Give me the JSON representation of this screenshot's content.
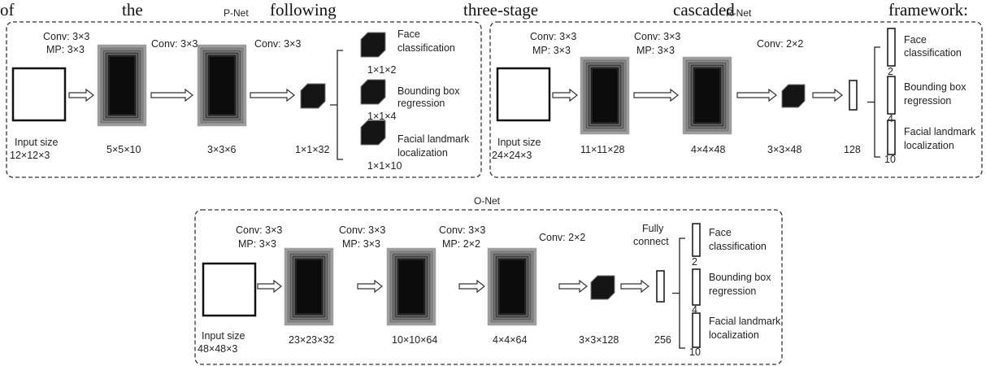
{
  "intro": [
    "of",
    "the",
    "following",
    "three-stage",
    "cascaded",
    "framework:"
  ],
  "networks": [
    {
      "title": "P-Net",
      "input": [
        "Input size",
        "12×12×3"
      ],
      "stages": [
        {
          "ops": [
            "Conv: 3×3",
            "MP: 3×3"
          ],
          "size": "5×5×10"
        },
        {
          "ops": [
            "Conv: 3×3"
          ],
          "size": "3×3×6"
        },
        {
          "ops": [
            "Conv: 3×3"
          ],
          "size": "1×1×32"
        }
      ],
      "outputs": [
        {
          "label": [
            "Face",
            "classification"
          ],
          "dim": "1×1×2"
        },
        {
          "label": [
            "Bounding box",
            "regression"
          ],
          "dim": "1×1×4"
        },
        {
          "label": [
            "Facial landmark",
            "localization"
          ],
          "dim": "1×1×10"
        }
      ]
    },
    {
      "title": "R-Net",
      "input": [
        "Input size",
        "24×24×3"
      ],
      "stages": [
        {
          "ops": [
            "Conv: 3×3",
            "MP: 3×3"
          ],
          "size": "11×11×28"
        },
        {
          "ops": [
            "Conv: 3×3",
            "MP: 3×3"
          ],
          "size": "4×4×48"
        },
        {
          "ops": [
            "Conv: 2×2"
          ],
          "size": "3×3×48"
        },
        {
          "size": "128"
        }
      ],
      "outputs": [
        {
          "label": [
            "Face",
            "classification"
          ],
          "dim": "2"
        },
        {
          "label": [
            "Bounding box",
            "regression"
          ],
          "dim": "4"
        },
        {
          "label": [
            "Facial landmark",
            "localization"
          ],
          "dim": "10"
        }
      ]
    },
    {
      "title": "O-Net",
      "input": [
        "Input size",
        "48×48×3"
      ],
      "stages": [
        {
          "ops": [
            "Conv: 3×3",
            "MP: 3×3"
          ],
          "size": "23×23×32"
        },
        {
          "ops": [
            "Conv: 3×3",
            "MP: 3×3"
          ],
          "size": "10×10×64"
        },
        {
          "ops": [
            "Conv: 3×3",
            "MP: 2×2"
          ],
          "size": "4×4×64"
        },
        {
          "ops": [
            "Conv: 2×2"
          ],
          "size": "3×3×128"
        },
        {
          "ops": [
            "Fully",
            "connect"
          ],
          "size": "256"
        }
      ],
      "outputs": [
        {
          "label": [
            "Face",
            "classification"
          ],
          "dim": "2"
        },
        {
          "label": [
            "Bounding box",
            "regression"
          ],
          "dim": "4"
        },
        {
          "label": [
            "Facial landmark",
            "localization"
          ],
          "dim": "10"
        }
      ]
    }
  ]
}
